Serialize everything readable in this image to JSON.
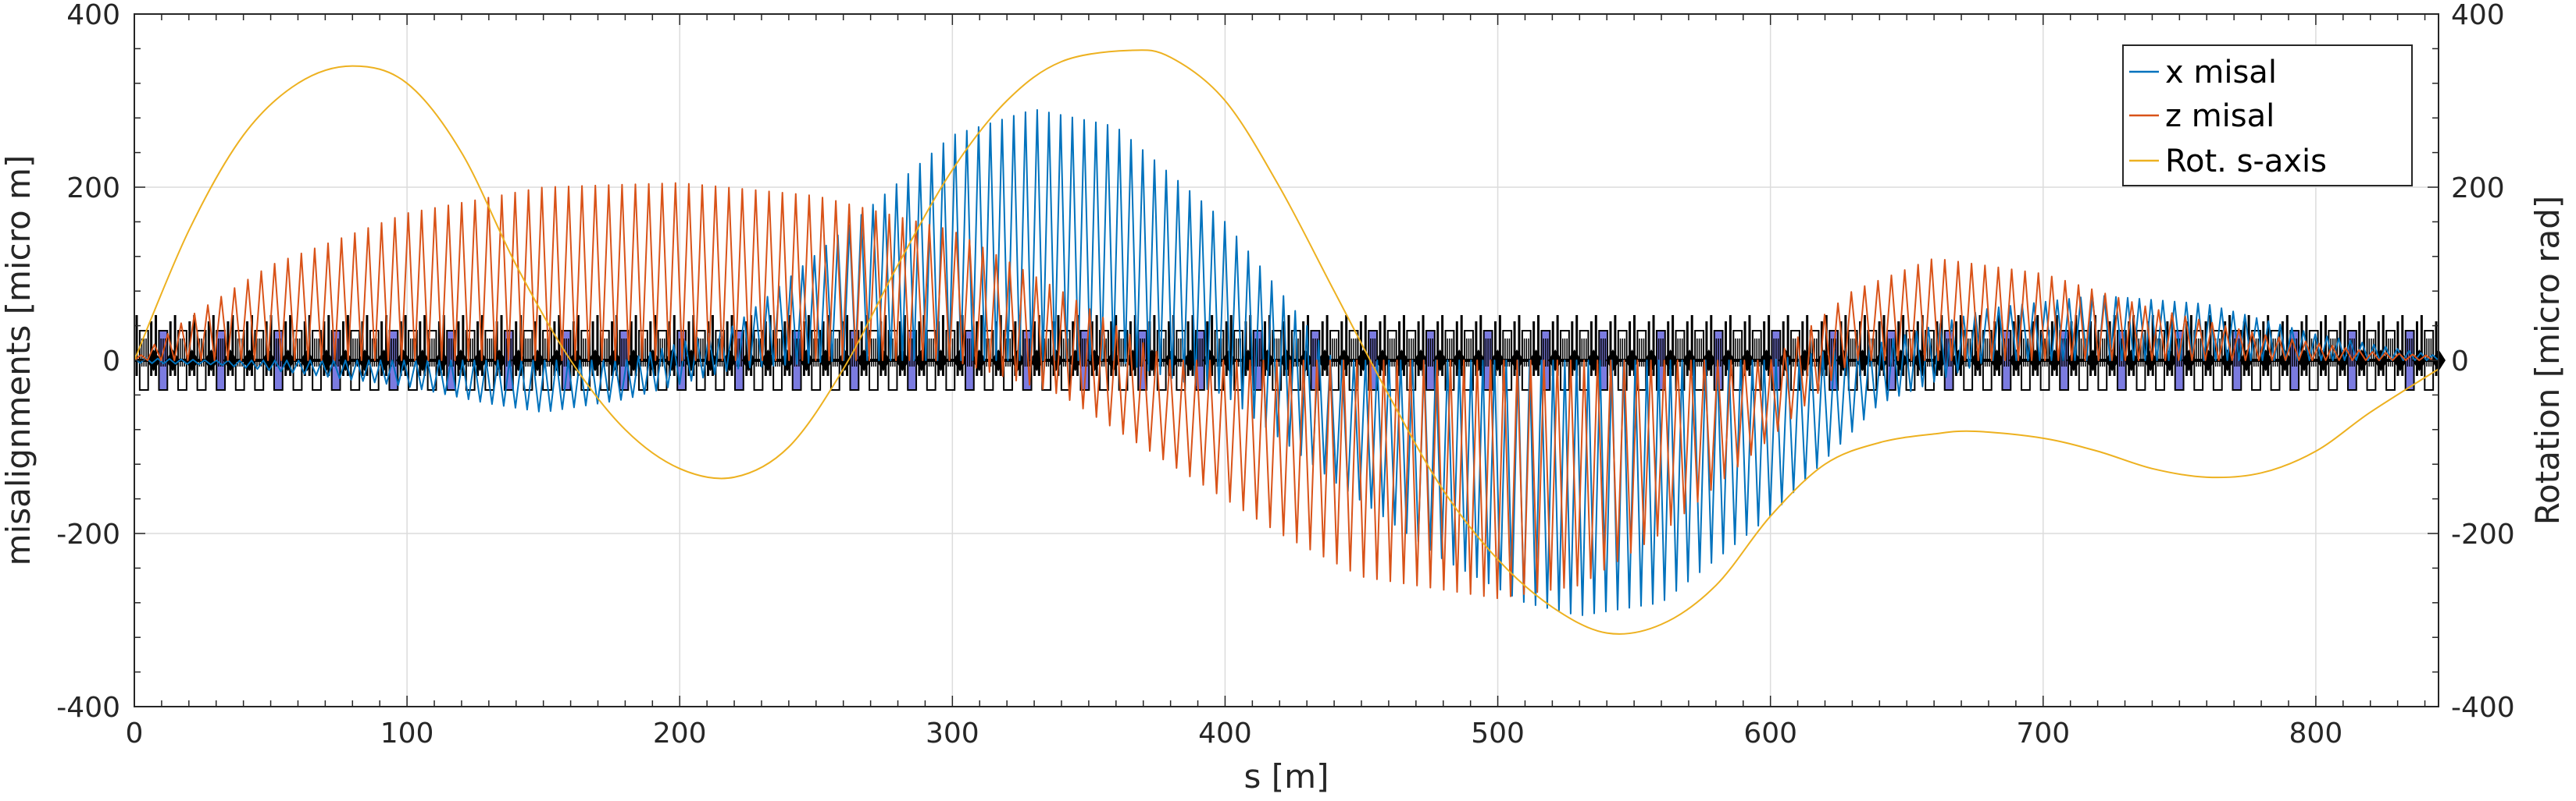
{
  "chart_data": {
    "type": "line",
    "title": "",
    "xlabel": "s [m]",
    "ylabel": "misalignments [micro m]",
    "y2label": "Rotation [micro rad]",
    "xlim": [
      0,
      845
    ],
    "ylim": [
      -400,
      400
    ],
    "y2lim": [
      -400,
      400
    ],
    "x_ticks": [
      0,
      100,
      200,
      300,
      400,
      500,
      600,
      700,
      800
    ],
    "y_ticks": [
      -400,
      -200,
      0,
      200,
      400
    ],
    "y2_ticks": [
      -400,
      -200,
      0,
      200,
      400
    ],
    "grid": true,
    "legend_position": "top-right",
    "series": [
      {
        "name": "x misal",
        "color": "#0072BD",
        "axis": "left",
        "style": "oscillating-envelope",
        "envelope_x": [
          0,
          30,
          60,
          100,
          130,
          150,
          180,
          220,
          260,
          300,
          330,
          360,
          400,
          440,
          480,
          510,
          530,
          560,
          600,
          640,
          680,
          720,
          760,
          800,
          845
        ],
        "envelope_upper": [
          3,
          0,
          0,
          0,
          0,
          0,
          0,
          40,
          150,
          260,
          290,
          270,
          160,
          0,
          0,
          0,
          0,
          0,
          0,
          20,
          60,
          75,
          65,
          30,
          5
        ],
        "envelope_lower": [
          -3,
          -5,
          -15,
          -30,
          -50,
          -60,
          -45,
          -10,
          0,
          0,
          0,
          0,
          -40,
          -140,
          -230,
          -280,
          -295,
          -280,
          -180,
          -50,
          0,
          0,
          0,
          0,
          0
        ]
      },
      {
        "name": "z misal",
        "color": "#D95319",
        "axis": "left",
        "style": "oscillating-envelope",
        "envelope_x": [
          0,
          20,
          50,
          100,
          150,
          200,
          250,
          300,
          340,
          380,
          420,
          450,
          500,
          530,
          560,
          600,
          630,
          660,
          700,
          740,
          780,
          820,
          845
        ],
        "envelope_upper": [
          0,
          50,
          110,
          170,
          200,
          205,
          190,
          150,
          80,
          0,
          0,
          0,
          0,
          0,
          0,
          0,
          80,
          118,
          100,
          60,
          30,
          10,
          5
        ],
        "envelope_lower": [
          0,
          0,
          0,
          0,
          0,
          0,
          0,
          0,
          -40,
          -120,
          -200,
          -250,
          -275,
          -260,
          -200,
          -90,
          0,
          0,
          0,
          0,
          0,
          0,
          0
        ]
      },
      {
        "name": "Rot. s-axis",
        "color": "#EDB120",
        "axis": "right",
        "style": "smooth",
        "x": [
          0,
          20,
          40,
          60,
          80,
          100,
          120,
          140,
          160,
          180,
          200,
          220,
          240,
          260,
          280,
          300,
          320,
          340,
          365,
          380,
          400,
          420,
          440,
          460,
          480,
          500,
          520,
          540,
          560,
          580,
          600,
          620,
          640,
          660,
          675,
          700,
          720,
          740,
          760,
          780,
          800,
          820,
          845
        ],
        "y": [
          0,
          150,
          260,
          320,
          340,
          320,
          240,
          110,
          0,
          -80,
          -125,
          -135,
          -100,
          -10,
          110,
          220,
          300,
          345,
          358,
          350,
          300,
          200,
          80,
          -40,
          -150,
          -230,
          -285,
          -315,
          -305,
          -260,
          -180,
          -120,
          -95,
          -85,
          -82,
          -90,
          -105,
          -125,
          -135,
          -130,
          -105,
          -60,
          -10
        ]
      }
    ],
    "lattice_markers": {
      "color": "#000000",
      "fill_color": "#7B7BE0",
      "baseline": 0,
      "count": 120
    }
  }
}
